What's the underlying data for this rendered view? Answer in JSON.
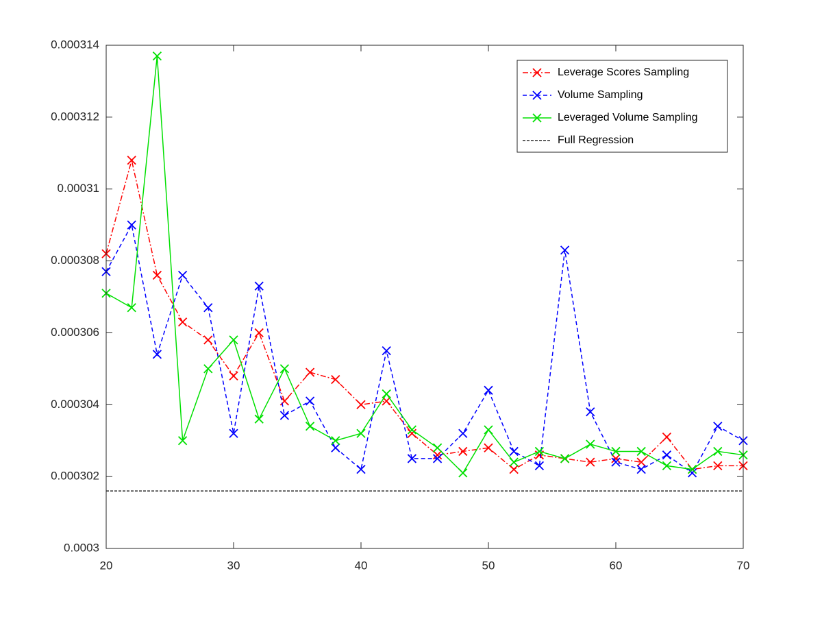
{
  "chart_data": {
    "type": "line",
    "x": [
      20,
      22,
      24,
      26,
      28,
      30,
      32,
      34,
      36,
      38,
      40,
      42,
      44,
      46,
      48,
      50,
      52,
      54,
      56,
      58,
      60,
      62,
      64,
      66,
      68,
      70
    ],
    "series": [
      {
        "name": "Leverage Scores Sampling",
        "color": "#ff0000",
        "style": "dashdot",
        "marker": "x",
        "values": [
          0.0003082,
          0.0003108,
          0.0003076,
          0.0003063,
          0.0003058,
          0.0003048,
          0.000306,
          0.0003041,
          0.0003049,
          0.0003047,
          0.000304,
          0.0003041,
          0.0003032,
          0.0003026,
          0.0003027,
          0.0003028,
          0.0003022,
          0.0003026,
          0.0003025,
          0.0003024,
          0.0003025,
          0.0003024,
          0.0003031,
          0.0003022,
          0.0003023,
          0.0003023
        ]
      },
      {
        "name": "Volume Sampling",
        "color": "#0000ff",
        "style": "dashed",
        "marker": "x",
        "values": [
          0.0003077,
          0.000309,
          0.0003054,
          0.0003076,
          0.0003067,
          0.0003032,
          0.0003073,
          0.0003037,
          0.0003041,
          0.0003028,
          0.0003022,
          0.0003055,
          0.0003025,
          0.0003025,
          0.0003032,
          0.0003044,
          0.0003027,
          0.0003023,
          0.0003083,
          0.0003038,
          0.0003024,
          0.0003022,
          0.0003026,
          0.0003021,
          0.0003034,
          0.000303
        ]
      },
      {
        "name": "Leveraged Volume Sampling",
        "color": "#00e000",
        "style": "solid",
        "marker": "x",
        "values": [
          0.0003071,
          0.0003067,
          0.0003137,
          0.000303,
          0.000305,
          0.0003058,
          0.0003036,
          0.000305,
          0.0003034,
          0.000303,
          0.0003032,
          0.0003043,
          0.0003033,
          0.0003028,
          0.0003021,
          0.0003033,
          0.0003024,
          0.0003027,
          0.0003025,
          0.0003029,
          0.0003027,
          0.0003027,
          0.0003023,
          0.0003022,
          0.0003027,
          0.0003026
        ]
      }
    ],
    "reference_line": {
      "name": "Full Regression",
      "color": "#000000",
      "style": "dashed",
      "value": 0.0003016
    },
    "xlim": [
      20,
      70
    ],
    "xticks": [
      20,
      30,
      40,
      50,
      60,
      70
    ],
    "ylim": [
      0.0003,
      0.000314
    ],
    "yticks": [
      0.0003,
      0.000302,
      0.000304,
      0.000306,
      0.000308,
      0.00031,
      0.000312,
      0.000314
    ],
    "legend": "top-right",
    "grid": false
  }
}
